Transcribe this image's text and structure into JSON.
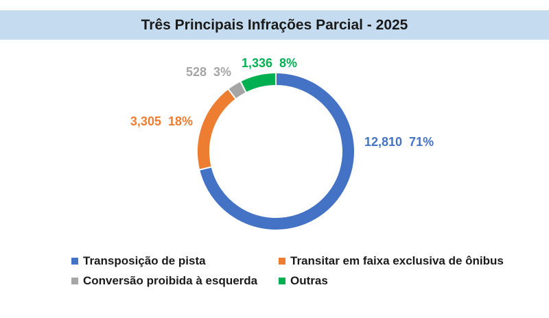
{
  "chart_data": {
    "type": "pie",
    "title": "Três Principais Infrações Parcial - 2025",
    "series": [
      {
        "name": "Transposição de pista",
        "value": 12810,
        "label": "12,810",
        "percent": "71%",
        "color": "#4472c4"
      },
      {
        "name": "Transitar em faixa exclusiva de ônibus",
        "value": 3305,
        "label": "3,305",
        "percent": "18%",
        "color": "#ed7d31"
      },
      {
        "name": "Conversão proibida à esquerda",
        "value": 528,
        "label": "528",
        "percent": "3%",
        "color": "#a5a5a5"
      },
      {
        "name": "Outras",
        "value": 1336,
        "label": "1,336",
        "percent": "8%",
        "color": "#00b050"
      }
    ],
    "legend_position": "bottom"
  }
}
